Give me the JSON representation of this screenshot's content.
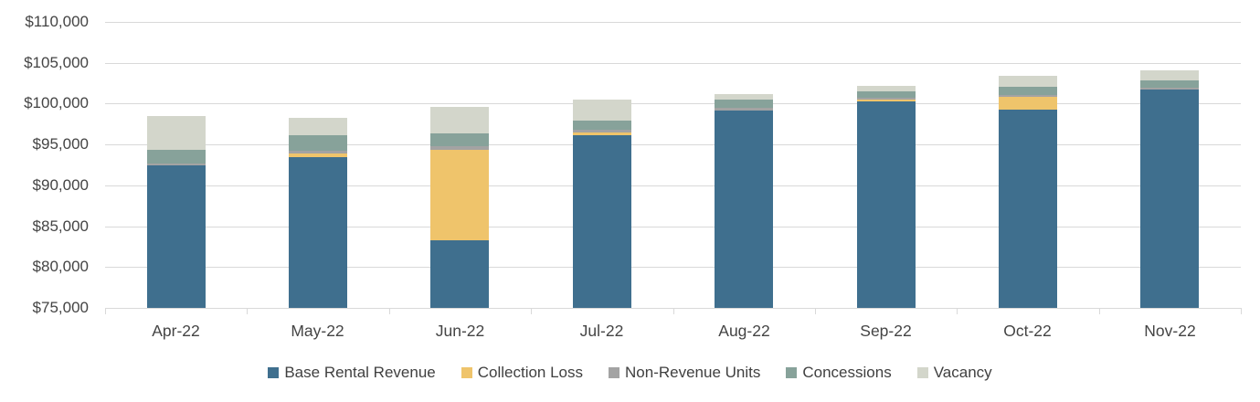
{
  "chart_data": {
    "type": "bar",
    "stacked": true,
    "title": "",
    "xlabel": "",
    "ylabel": "",
    "grid": true,
    "legend_position": "bottom",
    "categories": [
      "Apr-22",
      "May-22",
      "Jun-22",
      "Jul-22",
      "Aug-22",
      "Sep-22",
      "Oct-22",
      "Nov-22"
    ],
    "series": [
      {
        "name": "Base Rental Revenue",
        "color": "#3f6f8e",
        "values": [
          92400,
          93500,
          83300,
          96100,
          99100,
          100300,
          99300,
          101700
        ]
      },
      {
        "name": "Collection Loss",
        "color": "#efc46b",
        "values": [
          0,
          350,
          11050,
          370,
          0,
          150,
          1550,
          0
        ]
      },
      {
        "name": "Non-Revenue Units",
        "color": "#a3a3a3",
        "values": [
          250,
          350,
          450,
          370,
          380,
          250,
          250,
          200
        ]
      },
      {
        "name": "Concessions",
        "color": "#87a29a",
        "values": [
          1700,
          1900,
          1550,
          1060,
          1000,
          750,
          1000,
          900
        ]
      },
      {
        "name": "Vacancy",
        "color": "#d3d6cb",
        "values": [
          4100,
          2150,
          3250,
          2600,
          670,
          670,
          1300,
          1250
        ]
      }
    ],
    "ylim": [
      75000,
      110000
    ],
    "ytick_step": 5000,
    "ytick_labels": [
      "$75,000",
      "$80,000",
      "$85,000",
      "$90,000",
      "$95,000",
      "$100,000",
      "$105,000",
      "$110,000"
    ],
    "axis_color": "#d9d9d9",
    "label_color": "#444444"
  }
}
